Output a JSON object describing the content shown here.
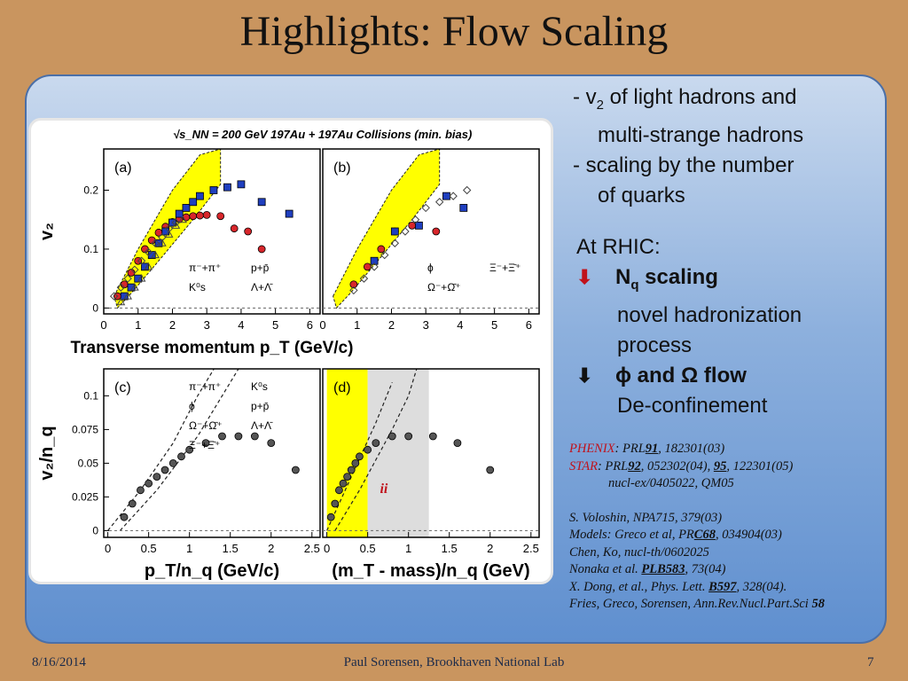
{
  "slide": {
    "title": "Highlights: Flow Scaling",
    "footer_date": "8/16/2014",
    "footer_author": "Paul Sorensen, Brookhaven National Lab",
    "footer_page": "7"
  },
  "bullets": {
    "b1_line1_prefix": "-  v",
    "b1_line1_sub": "2",
    "b1_line1_rest": " of light hadrons and",
    "b1_line2": "multi-strange hadrons",
    "b2_line1": "-  scaling by the number",
    "b2_line2": "of quarks"
  },
  "rhic": {
    "heading": "At RHIC:",
    "item1_label_main": "N",
    "item1_label_sub": "q",
    "item1_label_rest": " scaling",
    "item1_desc1": "novel hadronization",
    "item1_desc2": "process",
    "item2_label": "ϕ and Ω flow",
    "item2_desc": "De-confinement",
    "arrow_red": "🡻",
    "arrow_black": "🡻",
    "accent_color": "#c0121b"
  },
  "refs": {
    "phenix_name": "PHENIX",
    "phenix_rest_pre": ": PRL",
    "phenix_vol": "91",
    "phenix_rest_post": ", 182301(03)",
    "star_name": "STAR",
    "star_pre": ": PRL",
    "star_vol1": "92",
    "star_mid": ", 052302(04), ",
    "star_vol2": "95",
    "star_post": ", 122301(05)",
    "star_line2": "nucl-ex/0405022, QM05",
    "r1": "S. Voloshin, NPA715, 379(03)",
    "r2_pre": "Models: Greco et al, PR",
    "r2_vol": "C68",
    "r2_post": ", 034904(03)",
    "r3": "Chen, Ko, nucl-th/0602025",
    "r4_pre": "Nonaka et al. ",
    "r4_vol": "PLB583",
    "r4_post": ", 73(04)",
    "r5_pre": "X. Dong, et al., Phys. Lett. ",
    "r5_vol": "B597",
    "r5_post": ", 328(04).",
    "r6_pre": "Fries, Greco, Sorensen, Ann.Rev.Nucl.Part.Sci ",
    "r6_vol": "58"
  },
  "chart_data": [
    {
      "type": "scatter",
      "panel_label": "(a)",
      "header": "√s_NN = 200 GeV  197Au + 197Au Collisions (min. bias)",
      "xlabel": "Transverse momentum p_T (GeV/c)",
      "ylabel": "v₂",
      "xlim": [
        0,
        6.3
      ],
      "ylim": [
        -0.01,
        0.27
      ],
      "xticks": [
        "0",
        "1",
        "2",
        "3",
        "4",
        "5",
        "6"
      ],
      "yticks": [
        "0",
        "0.1",
        "0.2"
      ],
      "legend": [
        "π⁻+π⁺",
        "p+p̄",
        "K⁰s",
        "Λ+Λ̄"
      ],
      "series": [
        {
          "name": "K0s",
          "marker": "circle",
          "color": "#d8262b",
          "x": [
            0.4,
            0.6,
            0.8,
            1.0,
            1.2,
            1.4,
            1.6,
            1.8,
            2.0,
            2.2,
            2.4,
            2.6,
            2.8,
            3.0,
            3.4,
            3.8,
            4.2,
            4.6
          ],
          "y": [
            0.02,
            0.04,
            0.06,
            0.08,
            0.1,
            0.115,
            0.128,
            0.138,
            0.146,
            0.151,
            0.154,
            0.156,
            0.157,
            0.158,
            0.156,
            0.135,
            0.13,
            0.1
          ]
        },
        {
          "name": "Lambda",
          "marker": "square",
          "color": "#1f3fbf",
          "x": [
            0.6,
            0.8,
            1.0,
            1.2,
            1.4,
            1.6,
            1.8,
            2.0,
            2.2,
            2.4,
            2.6,
            2.8,
            3.2,
            3.6,
            4.0,
            4.6,
            5.4
          ],
          "y": [
            0.02,
            0.035,
            0.05,
            0.07,
            0.09,
            0.11,
            0.13,
            0.145,
            0.16,
            0.17,
            0.18,
            0.19,
            0.2,
            0.205,
            0.21,
            0.18,
            0.16
          ]
        },
        {
          "name": "pi",
          "marker": "diamond",
          "color": "#444444",
          "x": [
            0.3,
            0.5,
            0.7,
            0.9,
            1.1,
            1.3,
            1.5,
            1.7,
            1.9,
            2.1
          ],
          "y": [
            0.02,
            0.035,
            0.05,
            0.065,
            0.08,
            0.095,
            0.11,
            0.12,
            0.135,
            0.145
          ]
        },
        {
          "name": "p",
          "marker": "triangle",
          "color": "#444444",
          "x": [
            0.5,
            0.7,
            0.9,
            1.1,
            1.3,
            1.5,
            1.7,
            1.9,
            2.1,
            2.3
          ],
          "y": [
            0.01,
            0.02,
            0.035,
            0.05,
            0.07,
            0.09,
            0.11,
            0.125,
            0.14,
            0.15
          ]
        }
      ]
    },
    {
      "type": "scatter",
      "panel_label": "(b)",
      "xlim": [
        0,
        6.3
      ],
      "ylim": [
        -0.01,
        0.27
      ],
      "legend": [
        "ϕ",
        "Ξ⁻+Ξ̄⁺",
        "Ω⁻+Ω̄⁺"
      ],
      "series": [
        {
          "name": "phi",
          "marker": "circle",
          "color": "#d8262b",
          "x": [
            0.9,
            1.3,
            1.7,
            2.1,
            2.6,
            3.3
          ],
          "y": [
            0.04,
            0.07,
            0.1,
            0.13,
            0.14,
            0.13
          ]
        },
        {
          "name": "Omega",
          "marker": "square",
          "color": "#1f3fbf",
          "x": [
            1.5,
            2.1,
            2.8,
            3.6,
            4.1
          ],
          "y": [
            0.08,
            0.13,
            0.14,
            0.19,
            0.17
          ]
        },
        {
          "name": "Xi",
          "marker": "diamond",
          "color": "#444444",
          "x": [
            0.9,
            1.2,
            1.5,
            1.8,
            2.1,
            2.4,
            2.7,
            3.0,
            3.4,
            3.8,
            4.2
          ],
          "y": [
            0.03,
            0.05,
            0.07,
            0.09,
            0.11,
            0.13,
            0.15,
            0.17,
            0.18,
            0.19,
            0.2
          ]
        }
      ]
    },
    {
      "type": "scatter",
      "panel_label": "(c)",
      "xlabel": "p_T/n_q (GeV/c)",
      "ylabel": "v₂/n_q",
      "xlim": [
        -0.05,
        2.6
      ],
      "ylim": [
        -0.005,
        0.12
      ],
      "xticks": [
        "0",
        "0.5",
        "1",
        "1.5",
        "2",
        "2.5"
      ],
      "yticks": [
        "0",
        "0.025",
        "0.05",
        "0.075",
        "0.1"
      ],
      "legend": [
        "π⁻+π⁺",
        "K⁰s",
        "ϕ",
        "p+p̄",
        "Ω⁻+Ω̄⁺",
        "Λ+Λ̄",
        "Ξ⁻+Ξ̄⁺"
      ],
      "series": [
        {
          "name": "mixed",
          "marker": "circle",
          "color": "#555555",
          "x": [
            0.2,
            0.3,
            0.4,
            0.5,
            0.6,
            0.7,
            0.8,
            0.9,
            1.0,
            1.2,
            1.4,
            1.6,
            1.8,
            2.0,
            2.3
          ],
          "y": [
            0.01,
            0.02,
            0.03,
            0.035,
            0.04,
            0.045,
            0.05,
            0.055,
            0.06,
            0.065,
            0.07,
            0.07,
            0.07,
            0.065,
            0.045
          ]
        }
      ]
    },
    {
      "type": "scatter",
      "panel_label": "(d)",
      "xlabel": "(m_T - mass)/n_q (GeV)",
      "xlim": [
        -0.05,
        2.6
      ],
      "ylim": [
        -0.005,
        0.12
      ],
      "xticks": [
        "0",
        "0.5",
        "1",
        "1.5",
        "2",
        "2.5"
      ],
      "annotations": [
        "ii"
      ],
      "series": [
        {
          "name": "mixed",
          "marker": "circle",
          "color": "#555555",
          "x": [
            0.05,
            0.1,
            0.15,
            0.2,
            0.25,
            0.3,
            0.35,
            0.4,
            0.5,
            0.6,
            0.8,
            1.0,
            1.3,
            1.6,
            2.0
          ],
          "y": [
            0.01,
            0.02,
            0.03,
            0.035,
            0.04,
            0.045,
            0.05,
            0.055,
            0.06,
            0.065,
            0.07,
            0.07,
            0.07,
            0.065,
            0.045
          ]
        }
      ]
    }
  ]
}
